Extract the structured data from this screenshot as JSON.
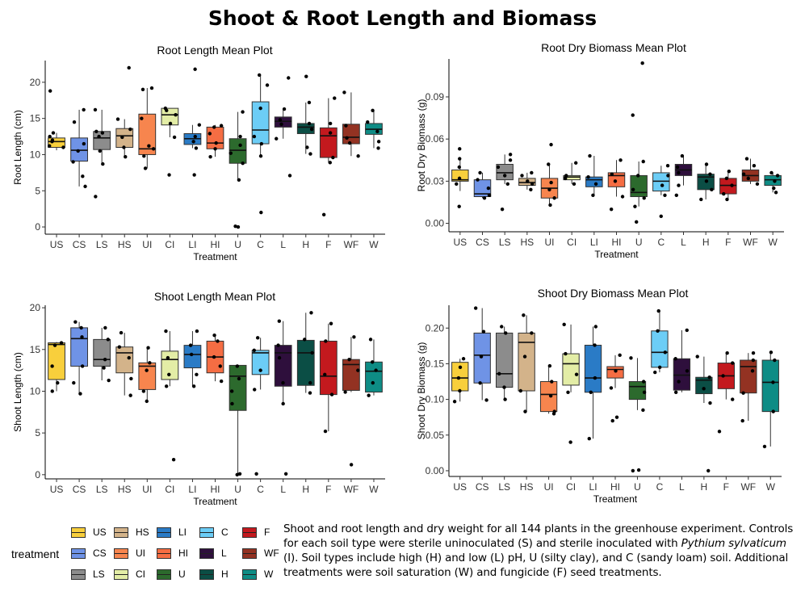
{
  "figure_title": "Shoot & Root Length and Biomass",
  "treatments": [
    "US",
    "CS",
    "LS",
    "HS",
    "UI",
    "CI",
    "LI",
    "HI",
    "U",
    "C",
    "L",
    "H",
    "F",
    "WF",
    "W"
  ],
  "colors": {
    "US": "#F8CF3C",
    "CS": "#6F93E6",
    "LS": "#8C8C8C",
    "HS": "#D3B38A",
    "UI": "#F7854E",
    "CI": "#E3EDA6",
    "LI": "#2A7BC6",
    "HI": "#F56D43",
    "U": "#2C6A2D",
    "C": "#6CCDF6",
    "L": "#2E0F3C",
    "H": "#0B4E45",
    "F": "#C3191E",
    "WF": "#933222",
    "W": "#0E8C85"
  },
  "legend": {
    "title": "treatment",
    "items": [
      "US",
      "CS",
      "LS",
      "HS",
      "UI",
      "CI",
      "LI",
      "HI",
      "U",
      "C",
      "L",
      "H",
      "F",
      "WF",
      "W"
    ]
  },
  "caption": {
    "part1": "Shoot and root length and dry weight for all 144 plants in the greenhouse experiment. Controls for each soil type were sterile uninoculated (S) and sterile inoculated with ",
    "species": "Pythium sylvaticum",
    "part2": " (I). Soil types include high (H) and low (L) pH, U (silty clay), and C (sandy loam) soil. Additional treatments were soil saturation (W) and fungicide (F) seed treatments."
  },
  "chart_data": [
    {
      "type": "box",
      "title": "Root Length Mean Plot",
      "xlabel": "Treatment",
      "ylabel": "Root Length (cm)",
      "ylim": [
        -1,
        23
      ],
      "yticks": [
        0,
        5,
        10,
        15,
        20
      ],
      "categories": [
        "US",
        "CS",
        "LS",
        "HS",
        "UI",
        "CI",
        "LI",
        "HI",
        "U",
        "C",
        "L",
        "H",
        "F",
        "WF",
        "W"
      ],
      "boxes": [
        {
          "q1": 11.0,
          "median": 11.8,
          "q3": 12.3,
          "lo": 10.6,
          "hi": 13.0,
          "points": [
            11.2,
            11.8,
            12.5,
            13.0,
            12.0,
            18.8,
            11.0
          ]
        },
        {
          "q1": 9.1,
          "median": 10.6,
          "q3": 12.3,
          "lo": 5.6,
          "hi": 16.2,
          "points": [
            5.6,
            7.0,
            9.0,
            10.5,
            11.5,
            14.5,
            16.2
          ]
        },
        {
          "q1": 10.7,
          "median": 12.3,
          "q3": 13.2,
          "lo": 8.7,
          "hi": 16.2,
          "points": [
            4.2,
            8.7,
            10.5,
            12.5,
            13.0,
            13.2,
            16.2
          ]
        },
        {
          "q1": 11.0,
          "median": 12.6,
          "q3": 13.6,
          "lo": 9.7,
          "hi": 14.9,
          "points": [
            9.7,
            11.0,
            12.4,
            13.5,
            14.9,
            22.0
          ]
        },
        {
          "q1": 10.0,
          "median": 10.8,
          "q3": 15.6,
          "lo": 8.1,
          "hi": 19.2,
          "points": [
            8.1,
            9.8,
            10.8,
            11.2,
            15.0,
            19.0,
            19.2
          ]
        },
        {
          "q1": 14.1,
          "median": 15.5,
          "q3": 16.4,
          "lo": 12.4,
          "hi": 16.4,
          "points": [
            7.2,
            12.4,
            14.3,
            15.5,
            16.1,
            16.4
          ]
        },
        {
          "q1": 11.4,
          "median": 12.2,
          "q3": 12.9,
          "lo": 10.9,
          "hi": 14.1,
          "points": [
            7.2,
            10.9,
            11.8,
            12.5,
            14.1,
            21.8
          ]
        },
        {
          "q1": 10.8,
          "median": 11.6,
          "q3": 13.8,
          "lo": 9.7,
          "hi": 14.1,
          "points": [
            9.7,
            10.8,
            11.6,
            12.9,
            13.8,
            14.0
          ]
        },
        {
          "q1": 8.8,
          "median": 10.6,
          "q3": 12.2,
          "lo": 6.5,
          "hi": 15.9,
          "points": [
            0.1,
            0.0,
            6.5,
            8.8,
            10.2,
            11.3,
            12.5,
            15.9
          ]
        },
        {
          "q1": 11.5,
          "median": 13.4,
          "q3": 17.3,
          "lo": 9.8,
          "hi": 21.0,
          "points": [
            2.0,
            9.8,
            11.5,
            12.5,
            16.4,
            19.6,
            21.0
          ]
        },
        {
          "q1": 13.8,
          "median": 14.6,
          "q3": 15.2,
          "lo": 12.2,
          "hi": 16.3,
          "points": [
            7.1,
            12.2,
            14.2,
            14.8,
            16.3,
            20.6
          ]
        },
        {
          "q1": 12.9,
          "median": 13.8,
          "q3": 14.3,
          "lo": 10.1,
          "hi": 17.2,
          "points": [
            10.1,
            11.0,
            13.5,
            14.3,
            17.2,
            20.8
          ]
        },
        {
          "q1": 9.6,
          "median": 12.6,
          "q3": 13.7,
          "lo": 8.9,
          "hi": 17.8,
          "points": [
            1.7,
            8.9,
            9.6,
            13.0,
            14.3,
            17.8
          ]
        },
        {
          "q1": 11.5,
          "median": 12.4,
          "q3": 14.2,
          "lo": 9.8,
          "hi": 18.6,
          "points": [
            9.8,
            11.6,
            12.3,
            14.0,
            18.6
          ]
        },
        {
          "q1": 12.8,
          "median": 13.5,
          "q3": 14.3,
          "lo": 10.9,
          "hi": 16.1,
          "points": [
            10.9,
            11.8,
            13.2,
            14.5,
            16.1
          ]
        }
      ]
    },
    {
      "type": "box",
      "title": "Root Dry Biomass Mean Plot",
      "xlabel": "Treatment",
      "ylabel": "Root Dry Biomass (g)",
      "ylim": [
        -0.006,
        0.117
      ],
      "yticks": [
        0.0,
        0.03,
        0.06,
        0.09
      ],
      "tick_labels": [
        "0.00",
        "0.03",
        "0.06",
        "0.09"
      ],
      "categories": [
        "US",
        "CS",
        "LS",
        "HS",
        "UI",
        "CI",
        "LI",
        "HI",
        "U",
        "C",
        "L",
        "H",
        "F",
        "WF",
        "W"
      ],
      "boxes": [
        {
          "q1": 0.03,
          "median": 0.031,
          "q3": 0.038,
          "lo": 0.023,
          "hi": 0.046,
          "points": [
            0.012,
            0.028,
            0.032,
            0.04,
            0.046,
            0.053
          ]
        },
        {
          "q1": 0.019,
          "median": 0.021,
          "q3": 0.031,
          "lo": 0.018,
          "hi": 0.036,
          "points": [
            0.018,
            0.02,
            0.025,
            0.031,
            0.036
          ]
        },
        {
          "q1": 0.031,
          "median": 0.036,
          "q3": 0.042,
          "lo": 0.028,
          "hi": 0.049,
          "points": [
            0.01,
            0.028,
            0.034,
            0.04,
            0.045,
            0.049
          ]
        },
        {
          "q1": 0.027,
          "median": 0.029,
          "q3": 0.032,
          "lo": 0.024,
          "hi": 0.036,
          "points": [
            0.024,
            0.028,
            0.03,
            0.034,
            0.036
          ]
        },
        {
          "q1": 0.018,
          "median": 0.025,
          "q3": 0.032,
          "lo": 0.013,
          "hi": 0.042,
          "points": [
            0.013,
            0.018,
            0.024,
            0.029,
            0.042,
            0.056
          ]
        },
        {
          "q1": 0.031,
          "median": 0.033,
          "q3": 0.034,
          "lo": 0.028,
          "hi": 0.043,
          "points": [
            0.028,
            0.032,
            0.034,
            0.043
          ]
        },
        {
          "q1": 0.026,
          "median": 0.031,
          "q3": 0.033,
          "lo": 0.02,
          "hi": 0.048,
          "points": [
            0.02,
            0.028,
            0.033,
            0.048
          ]
        },
        {
          "q1": 0.026,
          "median": 0.034,
          "q3": 0.036,
          "lo": 0.019,
          "hi": 0.045,
          "points": [
            0.01,
            0.019,
            0.03,
            0.035,
            0.045
          ]
        },
        {
          "q1": 0.019,
          "median": 0.022,
          "q3": 0.034,
          "lo": 0.012,
          "hi": 0.044,
          "points": [
            0.001,
            0.012,
            0.018,
            0.024,
            0.034,
            0.044,
            0.077,
            0.114
          ]
        },
        {
          "q1": 0.023,
          "median": 0.03,
          "q3": 0.036,
          "lo": 0.02,
          "hi": 0.041,
          "points": [
            0.005,
            0.02,
            0.027,
            0.034,
            0.041
          ]
        },
        {
          "q1": 0.034,
          "median": 0.038,
          "q3": 0.042,
          "lo": 0.027,
          "hi": 0.048,
          "points": [
            0.02,
            0.027,
            0.036,
            0.04,
            0.048
          ]
        },
        {
          "q1": 0.024,
          "median": 0.033,
          "q3": 0.035,
          "lo": 0.017,
          "hi": 0.042,
          "points": [
            0.017,
            0.024,
            0.03,
            0.035,
            0.042
          ]
        },
        {
          "q1": 0.021,
          "median": 0.027,
          "q3": 0.032,
          "lo": 0.017,
          "hi": 0.037,
          "points": [
            0.017,
            0.021,
            0.027,
            0.032,
            0.037
          ]
        },
        {
          "q1": 0.03,
          "median": 0.034,
          "q3": 0.038,
          "lo": 0.028,
          "hi": 0.046,
          "points": [
            0.028,
            0.032,
            0.035,
            0.041,
            0.046
          ]
        },
        {
          "q1": 0.027,
          "median": 0.031,
          "q3": 0.034,
          "lo": 0.022,
          "hi": 0.036,
          "points": [
            0.022,
            0.025,
            0.03,
            0.034,
            0.036
          ]
        }
      ]
    },
    {
      "type": "box",
      "title": "Shoot Length Mean Plot",
      "xlabel": "Treatment",
      "ylabel": "Shoot Length (cm)",
      "ylim": [
        -0.5,
        20.3
      ],
      "yticks": [
        0,
        5,
        10,
        15,
        20
      ],
      "categories": [
        "US",
        "CS",
        "LS",
        "HS",
        "UI",
        "CI",
        "LI",
        "HI",
        "U",
        "C",
        "L",
        "H",
        "F",
        "WF",
        "W"
      ],
      "boxes": [
        {
          "q1": 11.4,
          "median": 15.6,
          "q3": 15.8,
          "lo": 10.0,
          "hi": 15.9,
          "points": [
            10.0,
            11.0,
            13.0,
            15.5,
            15.8
          ]
        },
        {
          "q1": 13.0,
          "median": 16.3,
          "q3": 17.6,
          "lo": 9.7,
          "hi": 18.3,
          "points": [
            9.7,
            11.0,
            13.0,
            16.5,
            17.6,
            18.3
          ]
        },
        {
          "q1": 13.0,
          "median": 13.8,
          "q3": 16.2,
          "lo": 11.3,
          "hi": 17.6,
          "points": [
            11.3,
            12.8,
            13.8,
            16.2,
            17.6
          ]
        },
        {
          "q1": 12.2,
          "median": 14.6,
          "q3": 15.3,
          "lo": 9.5,
          "hi": 17.0,
          "points": [
            9.5,
            11.5,
            14.0,
            15.3,
            17.0
          ]
        },
        {
          "q1": 10.2,
          "median": 13.0,
          "q3": 13.4,
          "lo": 8.8,
          "hi": 15.2,
          "points": [
            8.8,
            10.0,
            12.5,
            13.4,
            15.2
          ]
        },
        {
          "q1": 11.4,
          "median": 13.8,
          "q3": 14.8,
          "lo": 10.6,
          "hi": 17.2,
          "points": [
            1.8,
            10.6,
            12.0,
            14.0,
            17.2
          ]
        },
        {
          "q1": 12.8,
          "median": 14.4,
          "q3": 15.5,
          "lo": 10.6,
          "hi": 17.2,
          "points": [
            10.6,
            12.0,
            14.4,
            15.5,
            17.2
          ]
        },
        {
          "q1": 12.2,
          "median": 14.1,
          "q3": 16.0,
          "lo": 11.2,
          "hi": 16.7,
          "points": [
            11.2,
            13.0,
            14.1,
            16.0,
            16.7
          ]
        },
        {
          "q1": 7.7,
          "median": 11.8,
          "q3": 13.1,
          "lo": 0.0,
          "hi": 13.2,
          "points": [
            0.0,
            0.1,
            8.5,
            10.0,
            11.5,
            13.0
          ]
        },
        {
          "q1": 12.0,
          "median": 14.6,
          "q3": 14.9,
          "lo": 10.2,
          "hi": 16.4,
          "points": [
            0.1,
            10.2,
            12.5,
            14.9,
            16.4
          ]
        },
        {
          "q1": 10.6,
          "median": 14.6,
          "q3": 15.5,
          "lo": 8.5,
          "hi": 18.4,
          "points": [
            0.1,
            8.5,
            11.0,
            14.0,
            15.5,
            18.4
          ]
        },
        {
          "q1": 10.7,
          "median": 14.6,
          "q3": 16.1,
          "lo": 9.8,
          "hi": 19.4,
          "points": [
            9.8,
            11.0,
            14.6,
            16.2,
            19.4
          ]
        },
        {
          "q1": 9.6,
          "median": 11.8,
          "q3": 16.0,
          "lo": 5.2,
          "hi": 18.1,
          "points": [
            5.2,
            9.6,
            12.0,
            16.0,
            18.1
          ]
        },
        {
          "q1": 10.1,
          "median": 13.2,
          "q3": 13.8,
          "lo": 9.9,
          "hi": 16.5,
          "points": [
            1.2,
            9.9,
            12.5,
            13.8,
            16.5
          ]
        },
        {
          "q1": 9.9,
          "median": 12.4,
          "q3": 13.5,
          "lo": 9.5,
          "hi": 16.2,
          "points": [
            9.5,
            11.0,
            12.5,
            13.5,
            16.2
          ]
        }
      ]
    },
    {
      "type": "box",
      "title": "Shoot Dry Biomass Mean Plot",
      "xlabel": "Treatment",
      "ylabel": "Shoot Dry Biomass (g)",
      "ylim": [
        -0.008,
        0.232
      ],
      "yticks": [
        0.0,
        0.05,
        0.1,
        0.15,
        0.2
      ],
      "tick_labels": [
        "0.00",
        "0.05",
        "0.10",
        "0.15",
        "0.20"
      ],
      "categories": [
        "US",
        "CS",
        "LS",
        "HS",
        "UI",
        "CI",
        "LI",
        "HI",
        "U",
        "C",
        "L",
        "H",
        "F",
        "WF",
        "W"
      ],
      "boxes": [
        {
          "q1": 0.112,
          "median": 0.13,
          "q3": 0.152,
          "lo": 0.097,
          "hi": 0.157,
          "points": [
            0.097,
            0.112,
            0.13,
            0.145,
            0.157
          ]
        },
        {
          "q1": 0.123,
          "median": 0.162,
          "q3": 0.193,
          "lo": 0.099,
          "hi": 0.228,
          "points": [
            0.099,
            0.123,
            0.16,
            0.195,
            0.228
          ]
        },
        {
          "q1": 0.117,
          "median": 0.136,
          "q3": 0.193,
          "lo": 0.1,
          "hi": 0.202,
          "points": [
            0.1,
            0.117,
            0.136,
            0.193,
            0.202
          ]
        },
        {
          "q1": 0.112,
          "median": 0.18,
          "q3": 0.193,
          "lo": 0.083,
          "hi": 0.218,
          "points": [
            0.083,
            0.112,
            0.16,
            0.193,
            0.218
          ]
        },
        {
          "q1": 0.083,
          "median": 0.107,
          "q3": 0.125,
          "lo": 0.08,
          "hi": 0.147,
          "points": [
            0.08,
            0.083,
            0.105,
            0.125,
            0.147
          ]
        },
        {
          "q1": 0.12,
          "median": 0.15,
          "q3": 0.164,
          "lo": 0.11,
          "hi": 0.205,
          "points": [
            0.04,
            0.11,
            0.135,
            0.164,
            0.205
          ]
        },
        {
          "q1": 0.11,
          "median": 0.13,
          "q3": 0.176,
          "lo": 0.045,
          "hi": 0.202,
          "points": [
            0.045,
            0.11,
            0.13,
            0.176,
            0.202
          ]
        },
        {
          "q1": 0.13,
          "median": 0.142,
          "q3": 0.146,
          "lo": 0.116,
          "hi": 0.162,
          "points": [
            0.07,
            0.075,
            0.116,
            0.14,
            0.162
          ]
        },
        {
          "q1": 0.1,
          "median": 0.118,
          "q3": 0.125,
          "lo": 0.085,
          "hi": 0.158,
          "points": [
            0.0,
            0.001,
            0.085,
            0.11,
            0.125,
            0.158
          ]
        },
        {
          "q1": 0.145,
          "median": 0.166,
          "q3": 0.196,
          "lo": 0.138,
          "hi": 0.224,
          "points": [
            0.138,
            0.145,
            0.166,
            0.196,
            0.224
          ]
        },
        {
          "q1": 0.113,
          "median": 0.134,
          "q3": 0.157,
          "lo": 0.11,
          "hi": 0.197,
          "points": [
            0.11,
            0.125,
            0.14,
            0.157,
            0.197
          ]
        },
        {
          "q1": 0.108,
          "median": 0.127,
          "q3": 0.131,
          "lo": 0.095,
          "hi": 0.16,
          "points": [
            0.0,
            0.095,
            0.115,
            0.131,
            0.16
          ]
        },
        {
          "q1": 0.115,
          "median": 0.133,
          "q3": 0.151,
          "lo": 0.1,
          "hi": 0.165,
          "points": [
            0.055,
            0.1,
            0.133,
            0.151,
            0.165
          ]
        },
        {
          "q1": 0.109,
          "median": 0.146,
          "q3": 0.155,
          "lo": 0.07,
          "hi": 0.165,
          "points": [
            0.07,
            0.109,
            0.14,
            0.155,
            0.165
          ]
        },
        {
          "q1": 0.083,
          "median": 0.124,
          "q3": 0.155,
          "lo": 0.034,
          "hi": 0.166,
          "points": [
            0.034,
            0.083,
            0.124,
            0.155,
            0.166
          ]
        }
      ]
    }
  ]
}
